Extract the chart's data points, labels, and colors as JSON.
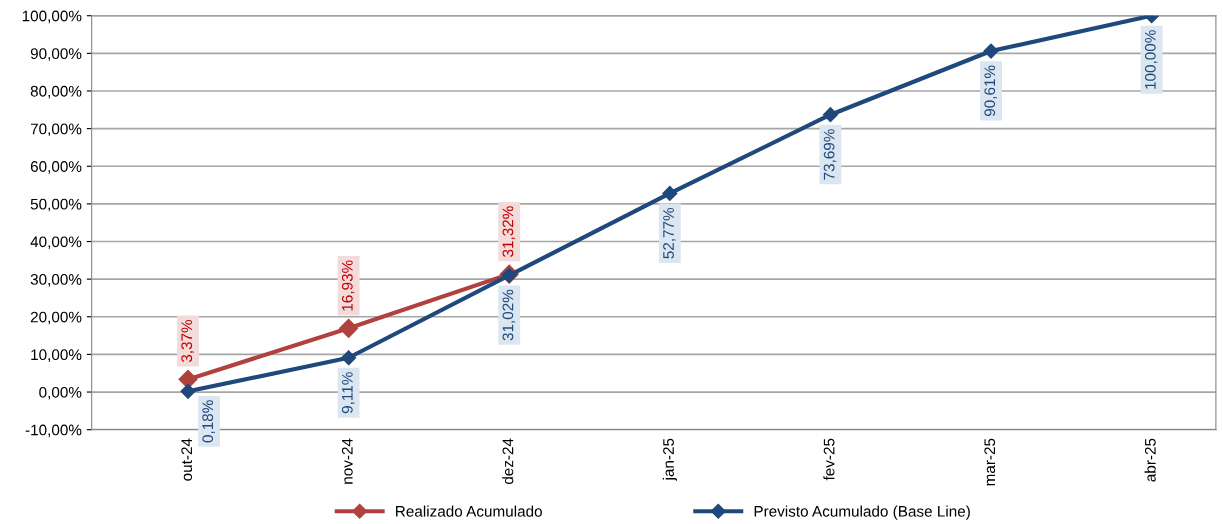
{
  "chart_data": {
    "type": "line",
    "categories": [
      "out-24",
      "nov-24",
      "dez-24",
      "jan-25",
      "fev-25",
      "mar-25",
      "abr-25"
    ],
    "series": [
      {
        "name": "Realizado Acumulado",
        "color": "#b0413e",
        "values": [
          3.37,
          16.93,
          31.32,
          null,
          null,
          null,
          null
        ],
        "value_labels": [
          "3,37%",
          "16,93%",
          "31,32%",
          null,
          null,
          null,
          null
        ]
      },
      {
        "name": "Previsto Acumulado (Base Line)",
        "color": "#1f497d",
        "values": [
          0.18,
          9.11,
          31.02,
          52.77,
          73.69,
          90.61,
          100.0
        ],
        "value_labels": [
          "0,18%",
          "9,11%",
          "31,02%",
          "52,77%",
          "73,69%",
          "90,61%",
          "100,00%"
        ]
      }
    ],
    "ylim": [
      -10,
      100
    ],
    "yticks": [
      {
        "value": -10,
        "label": "-10,00%"
      },
      {
        "value": 0,
        "label": "0,00%"
      },
      {
        "value": 10,
        "label": "10,00%"
      },
      {
        "value": 20,
        "label": "20,00%"
      },
      {
        "value": 30,
        "label": "30,00%"
      },
      {
        "value": 40,
        "label": "40,00%"
      },
      {
        "value": 50,
        "label": "50,00%"
      },
      {
        "value": 60,
        "label": "60,00%"
      },
      {
        "value": 70,
        "label": "70,00%"
      },
      {
        "value": 80,
        "label": "80,00%"
      },
      {
        "value": 90,
        "label": "90,00%"
      },
      {
        "value": 100,
        "label": "100,00%"
      }
    ],
    "grid": "y",
    "legend": "bottom",
    "marker": "diamond",
    "line_style": "solid"
  }
}
